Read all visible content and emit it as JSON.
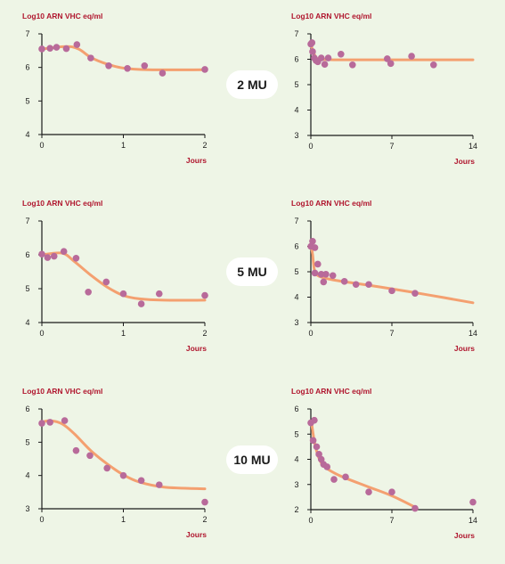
{
  "colors": {
    "background": "#eef5e6",
    "curve": "#f4a070",
    "point": "#b86a9a",
    "title": "#b0162e",
    "axis": "#1a1a1a"
  },
  "doses": [
    "2 MU",
    "5 MU",
    "10 MU"
  ],
  "chart_data": [
    {
      "type": "scatter",
      "title": "Log10 ARN VHC eq/ml",
      "xlabel": "Jours",
      "xlim": [
        0,
        2
      ],
      "ylim": [
        4,
        7
      ],
      "xticks": [
        0,
        1,
        2
      ],
      "yticks": [
        4,
        5,
        6,
        7
      ],
      "points": [
        [
          0,
          6.55
        ],
        [
          0.1,
          6.57
        ],
        [
          0.18,
          6.6
        ],
        [
          0.3,
          6.56
        ],
        [
          0.43,
          6.68
        ],
        [
          0.6,
          6.28
        ],
        [
          0.82,
          6.05
        ],
        [
          1.05,
          5.97
        ],
        [
          1.26,
          6.05
        ],
        [
          1.48,
          5.83
        ],
        [
          2.0,
          5.94
        ]
      ],
      "curve": [
        [
          0,
          6.55
        ],
        [
          0.3,
          6.62
        ],
        [
          0.45,
          6.55
        ],
        [
          0.6,
          6.3
        ],
        [
          0.8,
          6.1
        ],
        [
          1.0,
          5.98
        ],
        [
          1.3,
          5.93
        ],
        [
          2.0,
          5.93
        ]
      ]
    },
    {
      "type": "scatter",
      "title": "Log10 ARN VHC eq/ml",
      "xlabel": "Jours",
      "xlim": [
        0,
        14
      ],
      "ylim": [
        3,
        7
      ],
      "xticks": [
        0,
        7,
        14
      ],
      "yticks": [
        3,
        4,
        5,
        6,
        7
      ],
      "points": [
        [
          0,
          6.6
        ],
        [
          0.1,
          6.65
        ],
        [
          0.15,
          6.3
        ],
        [
          0.3,
          6.05
        ],
        [
          0.45,
          5.95
        ],
        [
          0.6,
          5.9
        ],
        [
          0.9,
          6.05
        ],
        [
          1.2,
          5.8
        ],
        [
          1.5,
          6.05
        ],
        [
          2.6,
          6.2
        ],
        [
          3.6,
          5.78
        ],
        [
          6.6,
          6.02
        ],
        [
          6.9,
          5.83
        ],
        [
          8.7,
          6.12
        ],
        [
          10.6,
          5.78
        ]
      ],
      "curve": [
        [
          0,
          6.6
        ],
        [
          0.2,
          6.3
        ],
        [
          0.5,
          6.05
        ],
        [
          1.0,
          6.0
        ],
        [
          2.0,
          5.98
        ],
        [
          6.0,
          5.98
        ],
        [
          14.0,
          5.98
        ]
      ]
    },
    {
      "type": "scatter",
      "title": "Log10 ARN VHC eq/ml",
      "xlabel": "Jours",
      "xlim": [
        0,
        2
      ],
      "ylim": [
        4,
        7
      ],
      "xticks": [
        0,
        1,
        2
      ],
      "yticks": [
        4,
        5,
        6,
        7
      ],
      "points": [
        [
          0,
          6.02
        ],
        [
          0.07,
          5.92
        ],
        [
          0.15,
          5.96
        ],
        [
          0.27,
          6.1
        ],
        [
          0.42,
          5.9
        ],
        [
          0.57,
          4.9
        ],
        [
          0.79,
          5.2
        ],
        [
          1.0,
          4.85
        ],
        [
          1.22,
          4.55
        ],
        [
          1.44,
          4.85
        ],
        [
          2.0,
          4.8
        ]
      ],
      "curve": [
        [
          0,
          6.0
        ],
        [
          0.25,
          6.05
        ],
        [
          0.4,
          5.8
        ],
        [
          0.6,
          5.4
        ],
        [
          0.8,
          5.05
        ],
        [
          1.0,
          4.8
        ],
        [
          1.2,
          4.7
        ],
        [
          1.5,
          4.66
        ],
        [
          2.0,
          4.66
        ]
      ]
    },
    {
      "type": "scatter",
      "title": "Log10 ARN VHC eq/ml",
      "xlabel": "Jours",
      "xlim": [
        0,
        14
      ],
      "ylim": [
        3,
        7
      ],
      "xticks": [
        0,
        7,
        14
      ],
      "yticks": [
        3,
        4,
        5,
        6,
        7
      ],
      "points": [
        [
          0,
          6.0
        ],
        [
          0.15,
          6.2
        ],
        [
          0.35,
          5.95
        ],
        [
          0.35,
          4.95
        ],
        [
          0.6,
          5.3
        ],
        [
          0.9,
          4.9
        ],
        [
          1.1,
          4.6
        ],
        [
          1.3,
          4.9
        ],
        [
          1.9,
          4.85
        ],
        [
          2.9,
          4.62
        ],
        [
          3.9,
          4.5
        ],
        [
          5.0,
          4.5
        ],
        [
          7.0,
          4.25
        ],
        [
          9.0,
          4.15
        ]
      ],
      "curve": [
        [
          0,
          6.1
        ],
        [
          0.15,
          5.7
        ],
        [
          0.3,
          5.1
        ],
        [
          0.6,
          4.85
        ],
        [
          1.5,
          4.72
        ],
        [
          3.0,
          4.6
        ],
        [
          6.0,
          4.4
        ],
        [
          10.0,
          4.1
        ],
        [
          14.0,
          3.78
        ]
      ]
    },
    {
      "type": "scatter",
      "title": "Log10 ARN VHC eq/ml",
      "xlabel": "Jours",
      "xlim": [
        0,
        2
      ],
      "ylim": [
        3,
        6
      ],
      "xticks": [
        0,
        1,
        2
      ],
      "yticks": [
        3,
        4,
        5,
        6
      ],
      "points": [
        [
          0,
          5.57
        ],
        [
          0.1,
          5.6
        ],
        [
          0.28,
          5.65
        ],
        [
          0.42,
          4.75
        ],
        [
          0.59,
          4.6
        ],
        [
          0.8,
          4.22
        ],
        [
          1.0,
          4.0
        ],
        [
          1.22,
          3.85
        ],
        [
          1.44,
          3.72
        ],
        [
          2.0,
          3.2
        ]
      ],
      "curve": [
        [
          0,
          5.6
        ],
        [
          0.1,
          5.65
        ],
        [
          0.25,
          5.55
        ],
        [
          0.4,
          5.25
        ],
        [
          0.6,
          4.75
        ],
        [
          0.8,
          4.35
        ],
        [
          1.0,
          4.02
        ],
        [
          1.2,
          3.8
        ],
        [
          1.5,
          3.65
        ],
        [
          2.0,
          3.6
        ]
      ]
    },
    {
      "type": "scatter",
      "title": "Log10 ARN VHC eq/ml",
      "xlabel": "Jours",
      "xlim": [
        0,
        14
      ],
      "ylim": [
        2,
        6
      ],
      "xticks": [
        0,
        7,
        14
      ],
      "yticks": [
        2,
        3,
        4,
        5,
        6
      ],
      "points": [
        [
          0,
          5.45
        ],
        [
          0.3,
          5.55
        ],
        [
          0.2,
          4.75
        ],
        [
          0.5,
          4.5
        ],
        [
          0.7,
          4.2
        ],
        [
          0.9,
          4.0
        ],
        [
          1.1,
          3.8
        ],
        [
          1.4,
          3.7
        ],
        [
          2.0,
          3.2
        ],
        [
          3.0,
          3.3
        ],
        [
          5.0,
          2.7
        ],
        [
          7.0,
          2.7
        ],
        [
          9.0,
          2.05
        ],
        [
          14.0,
          2.3
        ]
      ],
      "curve": [
        [
          0.05,
          5.5
        ],
        [
          0.2,
          5.0
        ],
        [
          0.4,
          4.5
        ],
        [
          0.7,
          4.05
        ],
        [
          1.2,
          3.7
        ],
        [
          2.5,
          3.35
        ],
        [
          5.0,
          2.9
        ],
        [
          7.0,
          2.55
        ],
        [
          9.0,
          2.1
        ]
      ]
    }
  ]
}
